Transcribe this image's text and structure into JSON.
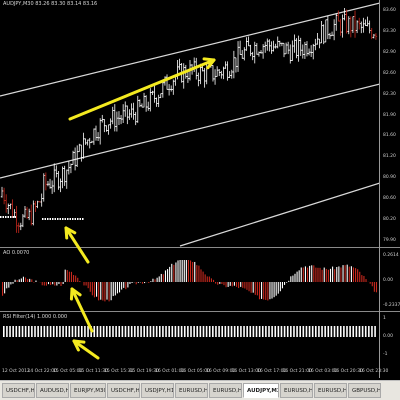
{
  "chart": {
    "title": "AUDJPY,M30 83.26 83.30 83.14 83.16",
    "colors": {
      "up_bar": "#ffffff",
      "down_bar": "#c8291e",
      "channel": "#d8d8d8",
      "annotation": "#f4ea20",
      "ao_up": "#ffffff",
      "ao_down": "#c8291e"
    },
    "price_axis": [
      "83.60",
      "83.30",
      "82.90",
      "82.60",
      "82.30",
      "81.90",
      "81.60",
      "81.20",
      "80.90",
      "80.60",
      "80.20",
      "79.90"
    ]
  },
  "ao_panel": {
    "label": "AO 0.0070",
    "axis": [
      "0.2614",
      "0.00",
      "-0.2337"
    ]
  },
  "rsi_panel": {
    "label": "RSI Filter(14) 1.000 0.000",
    "axis": [
      "1",
      "0.00",
      "-1"
    ]
  },
  "time_axis": [
    "12 Oct 2012",
    "14 Oct 22:00",
    "15 Oct 05:00",
    "15 Oct 11:30",
    "15 Oct 15:30",
    "15 Oct 19:30",
    "16 Oct 01:00",
    "16 Oct 05:00",
    "16 Oct 09:00",
    "16 Oct 13:00",
    "16 Oct 17:00",
    "16 Oct 21:00",
    "16 Oct 03:00",
    "16 Oct 20:30",
    "16 Oct 23:30"
  ],
  "tabs": [
    "USDCHF,H4",
    "AUDUSD,H4",
    "EURJPY,M30",
    "USDCHF,H4",
    "USDJPY,H1",
    "EURUSD,H1",
    "EURUSD,H4",
    "AUDJPY,M30",
    "EURUSD,H4",
    "EURUSD,H4",
    "GBPUSD,H4"
  ],
  "active_tab": 7,
  "chart_data": {
    "type": "candlestick",
    "series": [
      {
        "name": "AUDJPY,M30",
        "close_trend": [
          80.1,
          80.9,
          81.6,
          82.2,
          82.6,
          82.9,
          83.1,
          83.3,
          83.5
        ]
      }
    ]
  }
}
